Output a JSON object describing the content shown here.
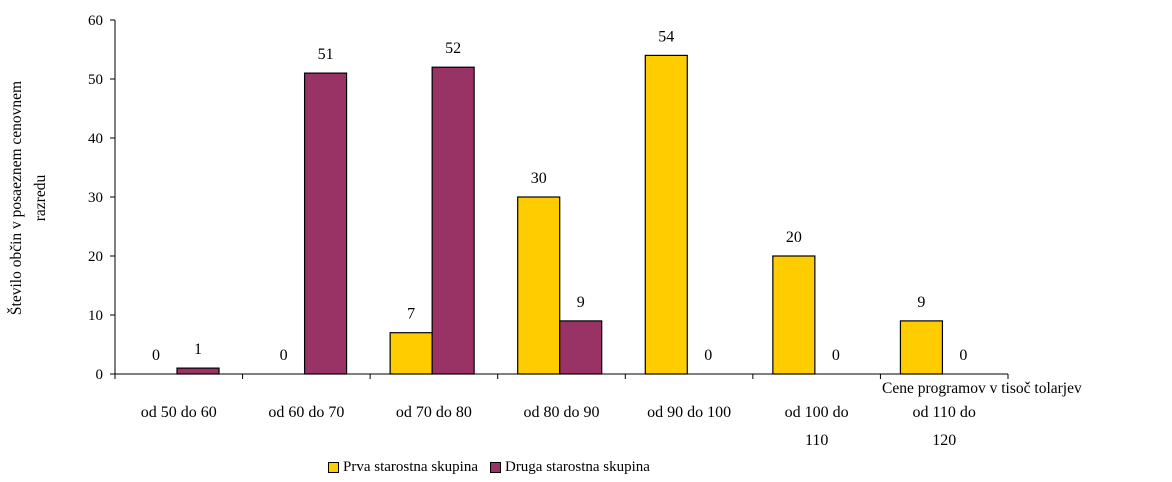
{
  "chart_data": {
    "type": "bar",
    "categories": [
      [
        "od 50 do 60"
      ],
      [
        "od 60 do 70"
      ],
      [
        "od 70 do 80"
      ],
      [
        "od 80 do 90"
      ],
      [
        "od 90 do 100"
      ],
      [
        "od 100 do",
        "110"
      ],
      [
        "od 110 do",
        "120"
      ]
    ],
    "series": [
      {
        "name": "Prva starostna skupina",
        "color": "#FFCC00",
        "values": [
          0,
          0,
          7,
          30,
          54,
          20,
          9
        ]
      },
      {
        "name": "Druga starostna skupina",
        "color": "#993366",
        "values": [
          1,
          51,
          52,
          9,
          0,
          0,
          0
        ]
      }
    ],
    "ylim": [
      0,
      60
    ],
    "yticks": [
      0,
      10,
      20,
      30,
      40,
      50,
      60
    ],
    "ylabel_lines": [
      "Število občin v posaeznem cenovnem",
      "razredu"
    ],
    "xlabel": "Cene programov v tisoč tolarjev",
    "grid": false,
    "legend_position": "bottom"
  }
}
